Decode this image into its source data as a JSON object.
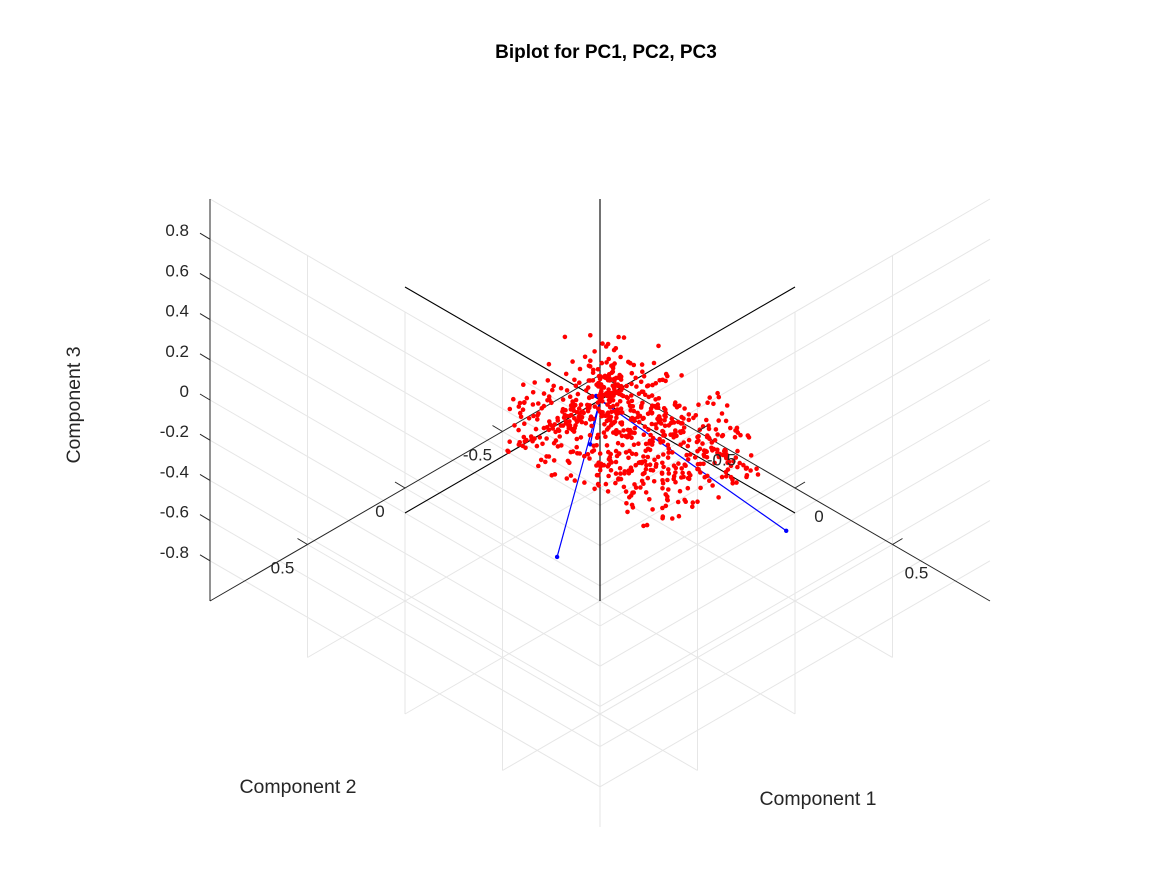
{
  "chart_data": {
    "type": "scatter",
    "projection": "3d",
    "title": "Biplot for PC1, PC2, PC3",
    "xlabel": "Component 1",
    "ylabel": "Component 2",
    "zlabel": "Component 3",
    "xlim": [
      -1,
      1
    ],
    "ylim": [
      -1,
      1
    ],
    "zlim": [
      -1,
      1
    ],
    "grid": true,
    "ticks": {
      "x": [
        {
          "v": -0.5,
          "label": "-0.5"
        },
        {
          "v": 0,
          "label": "0"
        },
        {
          "v": 0.5,
          "label": "0.5"
        }
      ],
      "y": [
        {
          "v": -0.5,
          "label": "-0.5"
        },
        {
          "v": 0,
          "label": "0"
        },
        {
          "v": 0.5,
          "label": "0.5"
        }
      ],
      "z": [
        {
          "v": -0.8,
          "label": "-0.8"
        },
        {
          "v": -0.6,
          "label": "-0.6"
        },
        {
          "v": -0.4,
          "label": "-0.4"
        },
        {
          "v": -0.2,
          "label": "-0.2"
        },
        {
          "v": 0,
          "label": "0"
        },
        {
          "v": 0.2,
          "label": "0.2"
        },
        {
          "v": 0.4,
          "label": "0.4"
        },
        {
          "v": 0.6,
          "label": "0.6"
        },
        {
          "v": 0.8,
          "label": "0.8"
        }
      ]
    },
    "colors": {
      "scores": "#ff0000",
      "loadings": "#0000ff",
      "reference_axes": "#000000",
      "grid": "#e6e6e6",
      "box": "#262626"
    },
    "reference_axes": [
      {
        "from": [
          -1,
          0,
          0
        ],
        "to": [
          1,
          0,
          0
        ]
      },
      {
        "from": [
          0,
          -1,
          0
        ],
        "to": [
          0,
          1,
          0
        ]
      },
      {
        "from": [
          0,
          0,
          -1
        ],
        "to": [
          0,
          0,
          1
        ]
      }
    ],
    "loadings": [
      {
        "x": 0.905,
        "y": -0.05,
        "z": -0.17
      },
      {
        "x": 0.62,
        "y": 0.84,
        "z": 0.04
      },
      {
        "x": -0.14,
        "y": -0.09,
        "z": -0.35
      },
      {
        "x": -0.01,
        "y": 0.01,
        "z": 0.02
      }
    ],
    "scores": [
      {
        "x": 0.75,
        "y": 0.05,
        "z": 0.3
      },
      {
        "x": 0.88,
        "y": 0.25,
        "z": 0.46
      },
      {
        "x": 0.85,
        "y": 0.35,
        "z": 0.42
      },
      {
        "x": 0.41,
        "y": 0.45,
        "z": 0.5
      },
      {
        "x": 0.4,
        "y": 0.1,
        "z": 0.55
      },
      {
        "x": 0.3,
        "y": 0.25,
        "z": 0.3
      },
      {
        "x": 0.12,
        "y": 0.3,
        "z": 0.55
      },
      {
        "x": 0.15,
        "y": 0.2,
        "z": 0.1
      },
      {
        "x": 0.2,
        "y": 0.35,
        "z": 0.05
      },
      {
        "x": 0.3,
        "y": 0.2,
        "z": 0.12
      },
      {
        "x": 0.35,
        "y": 0.3,
        "z": 0.08
      },
      {
        "x": 0.6,
        "y": 0.1,
        "z": 0.05
      },
      {
        "x": 0.55,
        "y": 0.4,
        "z": 0.05
      },
      {
        "x": 0.45,
        "y": -0.1,
        "z": 0.02
      },
      {
        "x": 0.5,
        "y": 0.15,
        "z": 0.02
      },
      {
        "x": 0.25,
        "y": 0.05,
        "z": 0.2
      },
      {
        "x": 0.32,
        "y": 0.05,
        "z": 0.0
      },
      {
        "x": 0.42,
        "y": 0.2,
        "z": -0.02
      },
      {
        "x": 0.62,
        "y": 0.3,
        "z": -0.02
      },
      {
        "x": 0.22,
        "y": 0.2,
        "z": 0.3
      },
      {
        "x": 0.05,
        "y": 0.1,
        "z": 0.28
      },
      {
        "x": 0.0,
        "y": 0.05,
        "z": 0.35
      },
      {
        "x": 0.7,
        "y": 0.2,
        "z": 0.0
      },
      {
        "x": 0.1,
        "y": 0.25,
        "z": 0.15
      },
      {
        "x": 0.5,
        "y": 0.05,
        "z": 0.08
      },
      {
        "x": 0.2,
        "y": -0.05,
        "z": 0.1
      }
    ]
  }
}
